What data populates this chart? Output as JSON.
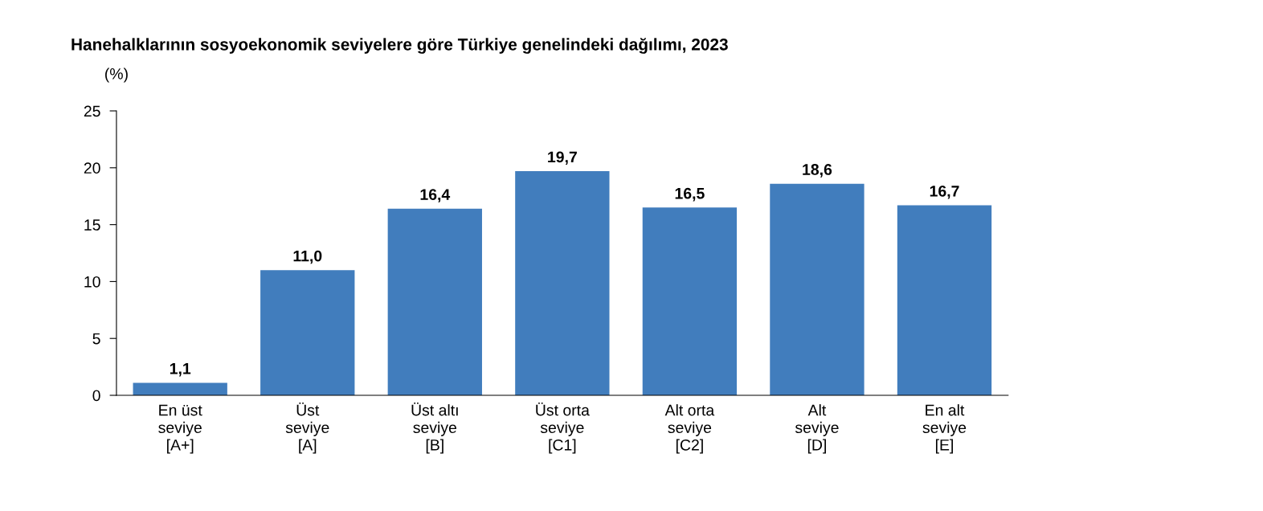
{
  "chart_data": {
    "type": "bar",
    "title": "Hanehalklarının sosyoekonomik seviyelere göre Türkiye genelindeki dağılımı, 2023",
    "ylabel": "(%)",
    "categories": [
      "En üst\nseviye\n[A+]",
      "Üst\nseviye\n[A]",
      "Üst altı\nseviye\n[B]",
      "Üst orta\nseviye\n[C1]",
      "Alt orta\nseviye\n[C2]",
      "Alt\nseviye\n[D]",
      "En alt\nseviye\n[E]"
    ],
    "values": [
      1.1,
      11.0,
      16.4,
      19.7,
      16.5,
      18.6,
      16.7
    ],
    "value_labels": [
      "1,1",
      "11,0",
      "16,4",
      "19,7",
      "16,5",
      "18,6",
      "16,7"
    ],
    "color": "#417dbd",
    "ylim": [
      0,
      25
    ],
    "yticks": [
      0,
      5,
      10,
      15,
      20,
      25
    ],
    "grid": false,
    "legend": false
  }
}
